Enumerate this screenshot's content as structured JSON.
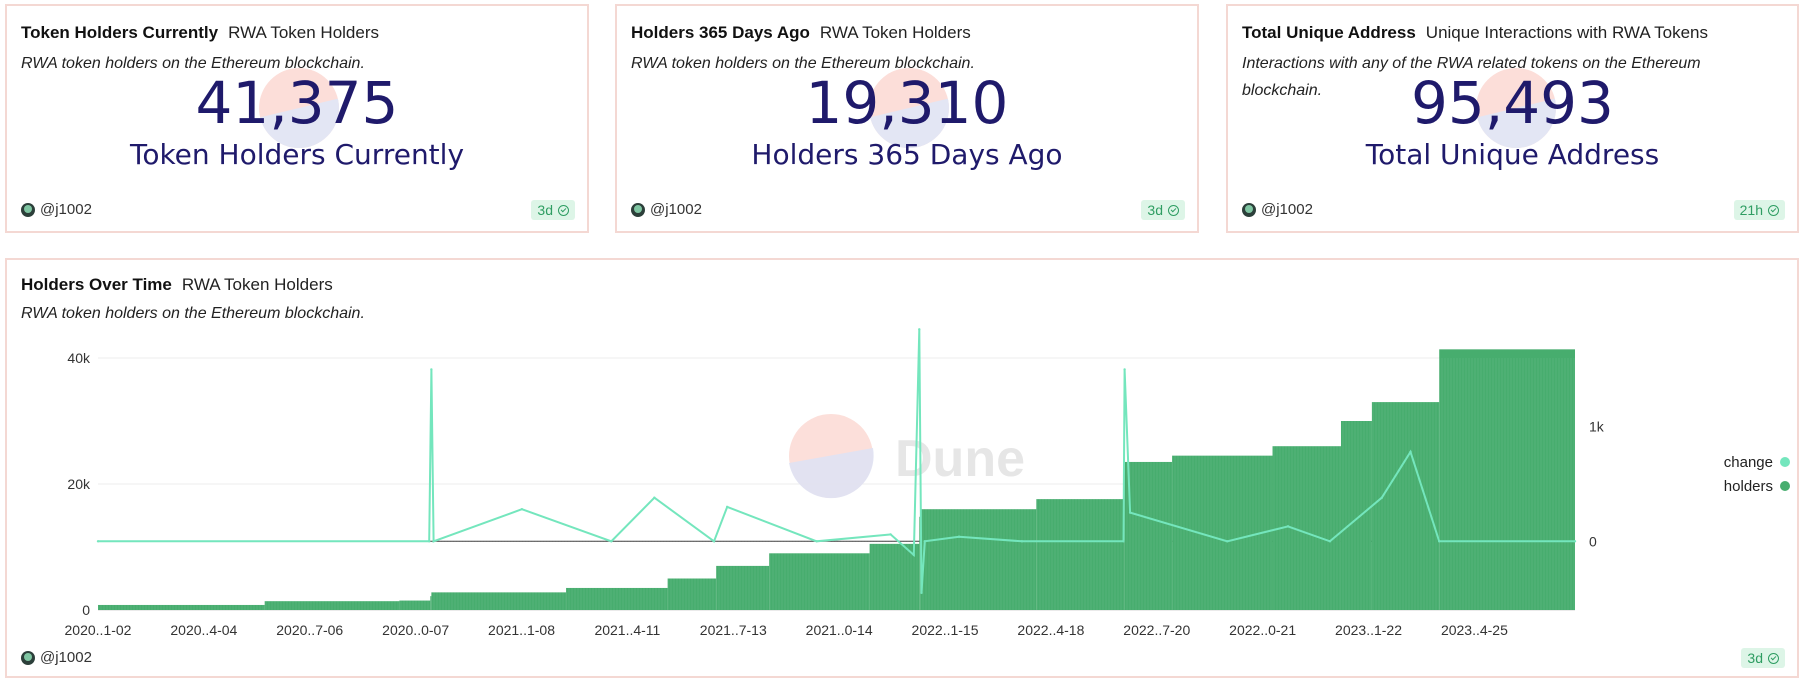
{
  "counters": [
    {
      "title": "Token Holders Currently",
      "subtitle": "RWA Token Holders",
      "description": "RWA token holders on the Ethereum blockchain.",
      "value": "41,375",
      "label": "Token Holders Currently",
      "author": "@j1002",
      "age": "3d"
    },
    {
      "title": "Holders 365 Days Ago",
      "subtitle": "RWA Token Holders",
      "description": "RWA token holders on the Ethereum blockchain.",
      "value": "19,310",
      "label": "Holders 365 Days Ago",
      "author": "@j1002",
      "age": "3d"
    },
    {
      "title": "Total Unique Address",
      "subtitle": "Unique Interactions with RWA Tokens",
      "description": "Interactions with any of the RWA related tokens on the Ethereum blockchain.",
      "value": "95,493",
      "label": "Total Unique Address",
      "author": "@j1002",
      "age": "21h"
    }
  ],
  "chart_card": {
    "title": "Holders Over Time",
    "subtitle": "RWA Token Holders",
    "description": "RWA token holders on the Ethereum blockchain.",
    "author": "@j1002",
    "age": "3d",
    "watermark": "Dune"
  },
  "colors": {
    "holders": "#47ad6e",
    "change": "#74e6bd",
    "navy": "#1f1a6b",
    "border": "#f4d8d3"
  },
  "chart_data": {
    "type": "bar+line",
    "x_tick_labels": [
      "2020..1-02",
      "2020..4-04",
      "2020..7-06",
      "2020..0-07",
      "2021..1-08",
      "2021..4-11",
      "2021..7-13",
      "2021..0-14",
      "2022..1-15",
      "2022..4-18",
      "2022..7-20",
      "2022..0-21",
      "2023..1-22",
      "2023..4-25"
    ],
    "y_left_ticks": [
      "0",
      "20k",
      "40k"
    ],
    "y_left_range": [
      0,
      40000
    ],
    "y_right_ticks": [
      "0",
      "1k"
    ],
    "y_right_range": [
      -600,
      1600
    ],
    "legend": {
      "position": "right",
      "entries": [
        "change",
        "holders"
      ]
    },
    "x_range": [
      "2020-01-02",
      "2023-09-01"
    ],
    "series": [
      {
        "name": "holders",
        "type": "bar",
        "x": [
          "2020-01-02",
          "2020-06-01",
          "2020-10-01",
          "2020-10-29",
          "2020-10-30",
          "2021-03-01",
          "2021-06-01",
          "2021-07-15",
          "2021-09-01",
          "2021-12-01",
          "2022-01-15",
          "2022-01-16",
          "2022-05-01",
          "2022-07-19",
          "2022-07-20",
          "2022-09-01",
          "2022-12-01",
          "2023-02-01",
          "2023-03-01",
          "2023-05-01",
          "2023-09-01"
        ],
        "values": [
          400,
          800,
          1400,
          1500,
          2200,
          2800,
          3500,
          5000,
          7000,
          9000,
          10500,
          14800,
          16000,
          17600,
          22600,
          23500,
          24500,
          26000,
          30000,
          33000,
          41375
        ]
      },
      {
        "name": "change",
        "type": "line",
        "x": [
          "2020-01-02",
          "2020-10-28",
          "2020-10-30",
          "2020-11-01",
          "2021-01-20",
          "2021-04-11",
          "2021-05-20",
          "2021-07-13",
          "2021-07-25",
          "2021-10-14",
          "2021-12-20",
          "2022-01-10",
          "2022-01-15",
          "2022-01-17",
          "2022-01-20",
          "2022-02-20",
          "2022-04-18",
          "2022-07-19",
          "2022-07-20",
          "2022-07-25",
          "2022-10-21",
          "2022-12-15",
          "2023-01-22",
          "2023-03-10",
          "2023-04-05",
          "2023-05-01",
          "2023-09-01"
        ],
        "values": [
          0,
          0,
          1500,
          0,
          280,
          0,
          380,
          0,
          300,
          0,
          60,
          -120,
          1850,
          -450,
          0,
          40,
          0,
          0,
          1500,
          250,
          0,
          130,
          0,
          380,
          780,
          0,
          0
        ]
      }
    ]
  }
}
